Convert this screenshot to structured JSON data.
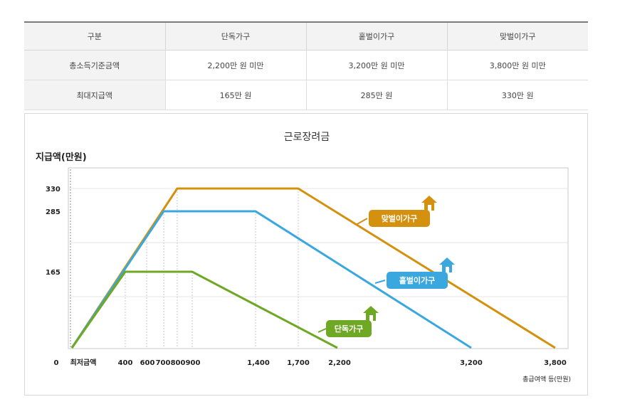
{
  "table": {
    "headers": [
      "구분",
      "단독가구",
      "홑벌이가구",
      "맞벌이가구"
    ],
    "rows": [
      [
        "총소득기준금액",
        "2,200만 원 미만",
        "3,200만 원 미만",
        "3,800만 원 미만"
      ],
      [
        "최대지급액",
        "165만 원",
        "285만 원",
        "330만 원"
      ]
    ]
  },
  "chart_data": {
    "type": "line",
    "title": "근로장려금",
    "ylabel": "지급액(만원)",
    "xlabel": "총급여액 등(만원)",
    "x_tick_labels": [
      "0",
      "최저금액",
      "400",
      "600",
      "700",
      "800",
      "900",
      "1,400",
      "1,700",
      "2,200",
      "3,200",
      "3,800"
    ],
    "y_tick_labels": [
      "0",
      "165",
      "285",
      "330"
    ],
    "xlim": [
      0,
      3800
    ],
    "ylim": [
      0,
      350
    ],
    "series": [
      {
        "name": "맞벌이가구",
        "color": "#d4900f",
        "points": [
          [
            0,
            0
          ],
          [
            800,
            330
          ],
          [
            1700,
            330
          ],
          [
            3800,
            0
          ]
        ]
      },
      {
        "name": "홑벌이가구",
        "color": "#3aa8df",
        "points": [
          [
            0,
            0
          ],
          [
            700,
            285
          ],
          [
            1400,
            285
          ],
          [
            3200,
            0
          ]
        ]
      },
      {
        "name": "단독가구",
        "color": "#6fa824",
        "points": [
          [
            0,
            0
          ],
          [
            400,
            165
          ],
          [
            900,
            165
          ],
          [
            2200,
            0
          ]
        ]
      }
    ],
    "icon": "house-icon",
    "grid": true
  }
}
